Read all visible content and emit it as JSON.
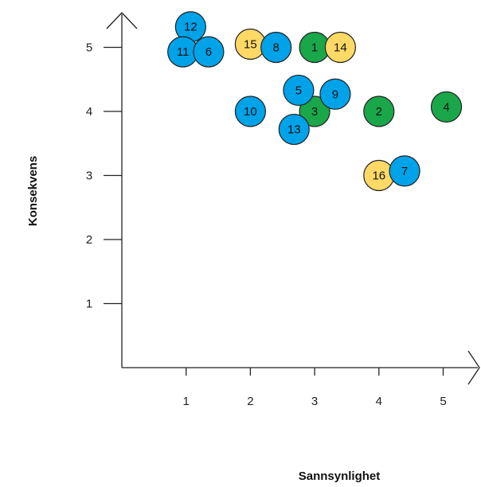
{
  "chart_data": {
    "type": "scatter",
    "title": "",
    "xlabel": "Sannsynlighet",
    "ylabel": "Konsekvens",
    "x_ticks": [
      "1",
      "2",
      "3",
      "4",
      "5"
    ],
    "y_ticks": [
      "1",
      "2",
      "3",
      "4",
      "5"
    ],
    "xlim": [
      0,
      5.5
    ],
    "ylim": [
      0,
      5.5
    ],
    "grid": false,
    "legend": "none",
    "colors": {
      "blue": "#00a2e8",
      "green": "#1aa74a",
      "yellow": "#ffd966",
      "outline": "#222222",
      "axis": "#222222"
    },
    "points": [
      {
        "label": "1",
        "x": 3.0,
        "y": 5.0,
        "color": "green"
      },
      {
        "label": "2",
        "x": 4.0,
        "y": 4.0,
        "color": "green"
      },
      {
        "label": "3",
        "x": 3.0,
        "y": 4.0,
        "color": "green"
      },
      {
        "label": "4",
        "x": 5.05,
        "y": 4.07,
        "color": "green"
      },
      {
        "label": "14",
        "x": 3.4,
        "y": 5.0,
        "color": "yellow"
      },
      {
        "label": "15",
        "x": 2.0,
        "y": 5.05,
        "color": "yellow"
      },
      {
        "label": "16",
        "x": 4.0,
        "y": 3.0,
        "color": "yellow"
      },
      {
        "label": "12",
        "x": 1.07,
        "y": 5.32,
        "color": "blue"
      },
      {
        "label": "11",
        "x": 0.95,
        "y": 4.93,
        "color": "blue"
      },
      {
        "label": "6",
        "x": 1.35,
        "y": 4.93,
        "color": "blue"
      },
      {
        "label": "8",
        "x": 2.4,
        "y": 5.0,
        "color": "blue"
      },
      {
        "label": "10",
        "x": 2.0,
        "y": 4.0,
        "color": "blue"
      },
      {
        "label": "5",
        "x": 2.75,
        "y": 4.33,
        "color": "blue"
      },
      {
        "label": "9",
        "x": 3.32,
        "y": 4.27,
        "color": "blue"
      },
      {
        "label": "13",
        "x": 2.68,
        "y": 3.72,
        "color": "blue"
      },
      {
        "label": "7",
        "x": 4.4,
        "y": 3.07,
        "color": "blue"
      }
    ]
  }
}
